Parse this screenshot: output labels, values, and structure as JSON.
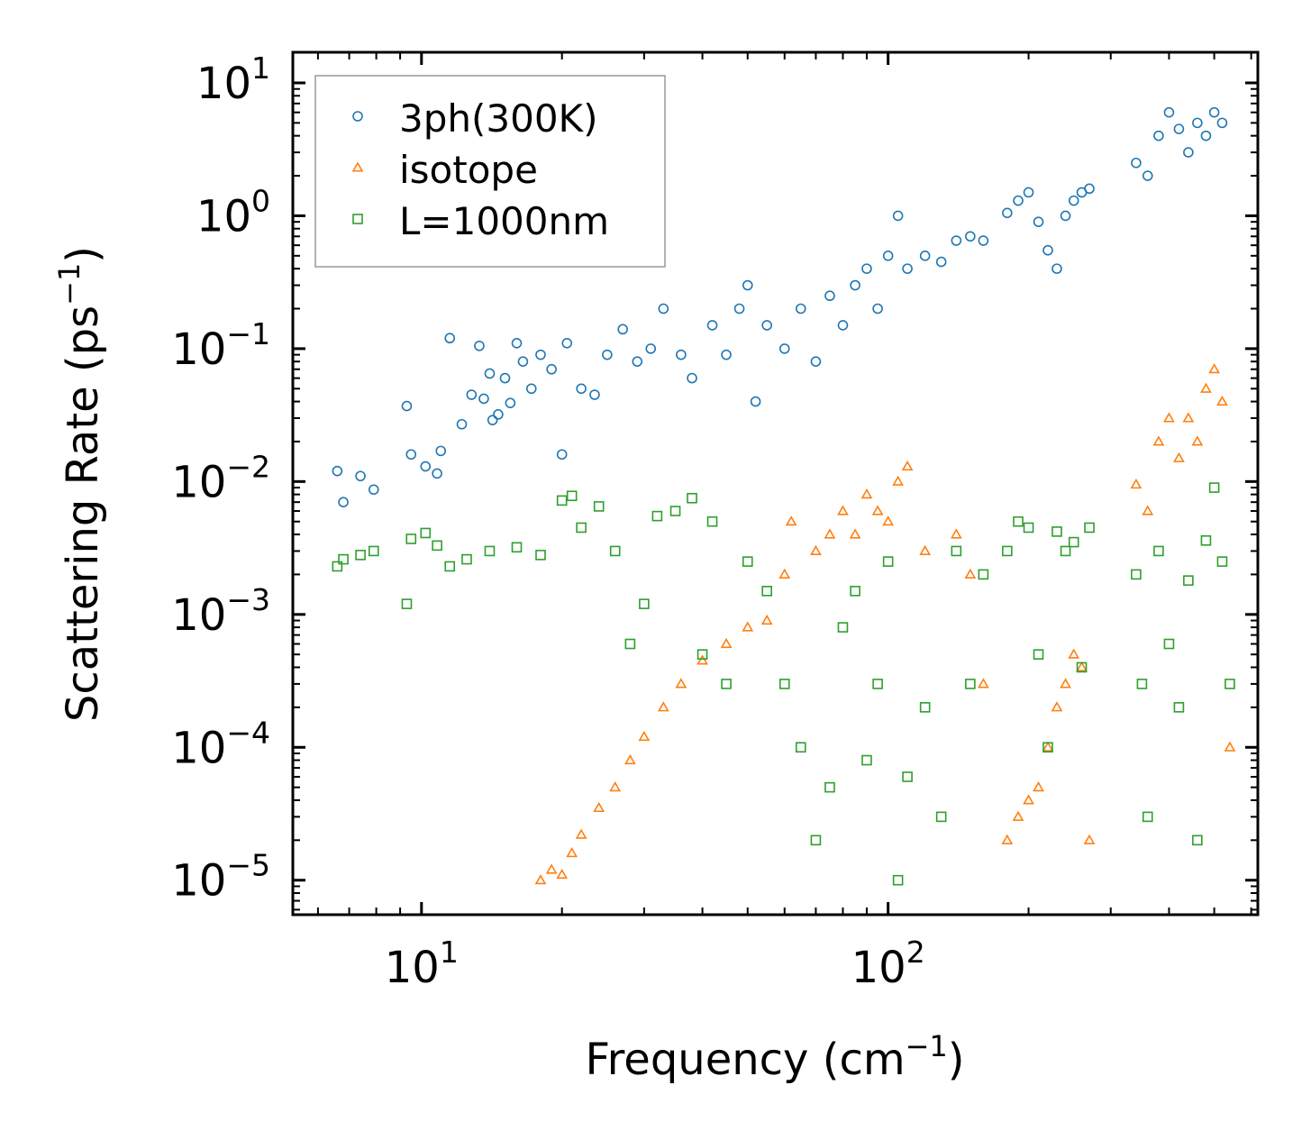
{
  "chart_data": {
    "type": "scatter",
    "title": "",
    "xlabel": {
      "base": "Frequency (cm",
      "sup": "−1",
      "tail": ")"
    },
    "ylabel": {
      "base": "Scattering Rate (ps",
      "sup": "−1",
      "tail": ")"
    },
    "xscale": "log",
    "yscale": "log",
    "xlim": [
      5.3,
      620
    ],
    "ylim": [
      5.5e-06,
      17
    ],
    "grid": false,
    "legend_position": "top-left",
    "x_ticks": [
      {
        "value": 10,
        "base": "10",
        "exp": "1"
      },
      {
        "value": 100,
        "base": "10",
        "exp": "2"
      }
    ],
    "y_ticks": [
      {
        "value": 10,
        "base": "10",
        "exp": "1"
      },
      {
        "value": 1,
        "base": "10",
        "exp": "0"
      },
      {
        "value": 0.1,
        "base": "10",
        "exp": "−1"
      },
      {
        "value": 0.01,
        "base": "10",
        "exp": "−2"
      },
      {
        "value": 0.001,
        "base": "10",
        "exp": "−3"
      },
      {
        "value": 0.0001,
        "base": "10",
        "exp": "−4"
      },
      {
        "value": 1e-05,
        "base": "10",
        "exp": "−5"
      }
    ],
    "series": [
      {
        "name": "3ph(300K)",
        "marker": "circle",
        "color": "#1f77b4",
        "points": [
          [
            6.6,
            0.012
          ],
          [
            6.8,
            0.007
          ],
          [
            7.4,
            0.011
          ],
          [
            7.9,
            0.0087
          ],
          [
            9.3,
            0.037
          ],
          [
            9.5,
            0.016
          ],
          [
            10.2,
            0.013
          ],
          [
            10.8,
            0.0115
          ],
          [
            11.0,
            0.017
          ],
          [
            11.5,
            0.12
          ],
          [
            12.2,
            0.027
          ],
          [
            12.8,
            0.045
          ],
          [
            13.3,
            0.105
          ],
          [
            13.6,
            0.042
          ],
          [
            14.0,
            0.065
          ],
          [
            14.2,
            0.029
          ],
          [
            14.6,
            0.032
          ],
          [
            15.1,
            0.06
          ],
          [
            15.5,
            0.039
          ],
          [
            16.0,
            0.11
          ],
          [
            16.5,
            0.08
          ],
          [
            17.2,
            0.05
          ],
          [
            18.0,
            0.09
          ],
          [
            19.0,
            0.07
          ],
          [
            20.0,
            0.016
          ],
          [
            20.5,
            0.11
          ],
          [
            22.0,
            0.05
          ],
          [
            23.5,
            0.045
          ],
          [
            25.0,
            0.09
          ],
          [
            27.0,
            0.14
          ],
          [
            29.0,
            0.08
          ],
          [
            31.0,
            0.1
          ],
          [
            33.0,
            0.2
          ],
          [
            36.0,
            0.09
          ],
          [
            38.0,
            0.06
          ],
          [
            42.0,
            0.15
          ],
          [
            45.0,
            0.09
          ],
          [
            48.0,
            0.2
          ],
          [
            50.0,
            0.3
          ],
          [
            52.0,
            0.04
          ],
          [
            55.0,
            0.15
          ],
          [
            60.0,
            0.1
          ],
          [
            65.0,
            0.2
          ],
          [
            70.0,
            0.08
          ],
          [
            75.0,
            0.25
          ],
          [
            80.0,
            0.15
          ],
          [
            85.0,
            0.3
          ],
          [
            90.0,
            0.4
          ],
          [
            95.0,
            0.2
          ],
          [
            100.0,
            0.5
          ],
          [
            105.0,
            1.0
          ],
          [
            110.0,
            0.4
          ],
          [
            120.0,
            0.5
          ],
          [
            130.0,
            0.45
          ],
          [
            140.0,
            0.65
          ],
          [
            150.0,
            0.7
          ],
          [
            160.0,
            0.65
          ],
          [
            180.0,
            1.05
          ],
          [
            190.0,
            1.3
          ],
          [
            200.0,
            1.5
          ],
          [
            210.0,
            0.9
          ],
          [
            220.0,
            0.55
          ],
          [
            230.0,
            0.4
          ],
          [
            240.0,
            1.0
          ],
          [
            250.0,
            1.3
          ],
          [
            260.0,
            1.5
          ],
          [
            270.0,
            1.6
          ],
          [
            340.0,
            2.5
          ],
          [
            360.0,
            2.0
          ],
          [
            380.0,
            4.0
          ],
          [
            400.0,
            6.0
          ],
          [
            420.0,
            4.5
          ],
          [
            440.0,
            3.0
          ],
          [
            460.0,
            5.0
          ],
          [
            480.0,
            4.0
          ],
          [
            500.0,
            6.0
          ],
          [
            520.0,
            5.0
          ]
        ]
      },
      {
        "name": "isotope",
        "marker": "triangle",
        "color": "#ff7f0e",
        "points": [
          [
            18.0,
            1e-05
          ],
          [
            19.0,
            1.2e-05
          ],
          [
            20.0,
            1.1e-05
          ],
          [
            21.0,
            1.6e-05
          ],
          [
            22.0,
            2.2e-05
          ],
          [
            24.0,
            3.5e-05
          ],
          [
            26.0,
            5e-05
          ],
          [
            28.0,
            8e-05
          ],
          [
            30.0,
            0.00012
          ],
          [
            33.0,
            0.0002
          ],
          [
            36.0,
            0.0003
          ],
          [
            40.0,
            0.00045
          ],
          [
            45.0,
            0.0006
          ],
          [
            50.0,
            0.0008
          ],
          [
            55.0,
            0.0009
          ],
          [
            60.0,
            0.002
          ],
          [
            62.0,
            0.005
          ],
          [
            70.0,
            0.003
          ],
          [
            75.0,
            0.004
          ],
          [
            80.0,
            0.006
          ],
          [
            85.0,
            0.004
          ],
          [
            90.0,
            0.008
          ],
          [
            95.0,
            0.006
          ],
          [
            100.0,
            0.005
          ],
          [
            105.0,
            0.01
          ],
          [
            110.0,
            0.013
          ],
          [
            120.0,
            0.003
          ],
          [
            140.0,
            0.004
          ],
          [
            150.0,
            0.002
          ],
          [
            160.0,
            0.0003
          ],
          [
            180.0,
            2e-05
          ],
          [
            190.0,
            3e-05
          ],
          [
            200.0,
            4e-05
          ],
          [
            210.0,
            5e-05
          ],
          [
            220.0,
            0.0001
          ],
          [
            230.0,
            0.0002
          ],
          [
            240.0,
            0.0003
          ],
          [
            250.0,
            0.0005
          ],
          [
            260.0,
            0.0004
          ],
          [
            270.0,
            2e-05
          ],
          [
            340.0,
            0.0095
          ],
          [
            360.0,
            0.006
          ],
          [
            380.0,
            0.02
          ],
          [
            400.0,
            0.03
          ],
          [
            420.0,
            0.015
          ],
          [
            440.0,
            0.03
          ],
          [
            460.0,
            0.02
          ],
          [
            480.0,
            0.05
          ],
          [
            500.0,
            0.07
          ],
          [
            520.0,
            0.04
          ],
          [
            540.0,
            0.0001
          ]
        ]
      },
      {
        "name": "L=1000nm",
        "marker": "square",
        "color": "#2ca02c",
        "points": [
          [
            6.6,
            0.0023
          ],
          [
            6.8,
            0.0026
          ],
          [
            7.4,
            0.0028
          ],
          [
            7.9,
            0.003
          ],
          [
            9.3,
            0.0012
          ],
          [
            9.5,
            0.0037
          ],
          [
            10.2,
            0.0041
          ],
          [
            10.8,
            0.0033
          ],
          [
            11.5,
            0.0023
          ],
          [
            12.5,
            0.0026
          ],
          [
            14.0,
            0.003
          ],
          [
            16.0,
            0.0032
          ],
          [
            18.0,
            0.0028
          ],
          [
            20.0,
            0.0072
          ],
          [
            21.0,
            0.0078
          ],
          [
            22.0,
            0.0045
          ],
          [
            24.0,
            0.0065
          ],
          [
            26.0,
            0.003
          ],
          [
            28.0,
            0.0006
          ],
          [
            30.0,
            0.0012
          ],
          [
            32.0,
            0.0055
          ],
          [
            35.0,
            0.006
          ],
          [
            38.0,
            0.0075
          ],
          [
            40.0,
            0.0005
          ],
          [
            42.0,
            0.005
          ],
          [
            45.0,
            0.0003
          ],
          [
            50.0,
            0.0025
          ],
          [
            55.0,
            0.0015
          ],
          [
            60.0,
            0.0003
          ],
          [
            65.0,
            0.0001
          ],
          [
            70.0,
            2e-05
          ],
          [
            75.0,
            5e-05
          ],
          [
            80.0,
            0.0008
          ],
          [
            85.0,
            0.0015
          ],
          [
            90.0,
            8e-05
          ],
          [
            95.0,
            0.0003
          ],
          [
            100.0,
            0.0025
          ],
          [
            105.0,
            1e-05
          ],
          [
            110.0,
            6e-05
          ],
          [
            120.0,
            0.0002
          ],
          [
            130.0,
            3e-05
          ],
          [
            140.0,
            0.003
          ],
          [
            150.0,
            0.0003
          ],
          [
            160.0,
            0.002
          ],
          [
            180.0,
            0.003
          ],
          [
            190.0,
            0.005
          ],
          [
            200.0,
            0.0045
          ],
          [
            210.0,
            0.0005
          ],
          [
            220.0,
            0.0001
          ],
          [
            230.0,
            0.0042
          ],
          [
            240.0,
            0.003
          ],
          [
            250.0,
            0.0035
          ],
          [
            260.0,
            0.0004
          ],
          [
            270.0,
            0.0045
          ],
          [
            340.0,
            0.002
          ],
          [
            350.0,
            0.0003
          ],
          [
            360.0,
            3e-05
          ],
          [
            380.0,
            0.003
          ],
          [
            400.0,
            0.0006
          ],
          [
            420.0,
            0.0002
          ],
          [
            440.0,
            0.0018
          ],
          [
            460.0,
            2e-05
          ],
          [
            480.0,
            0.0036
          ],
          [
            500.0,
            0.009
          ],
          [
            520.0,
            0.0025
          ],
          [
            540.0,
            0.0003
          ]
        ]
      }
    ]
  }
}
